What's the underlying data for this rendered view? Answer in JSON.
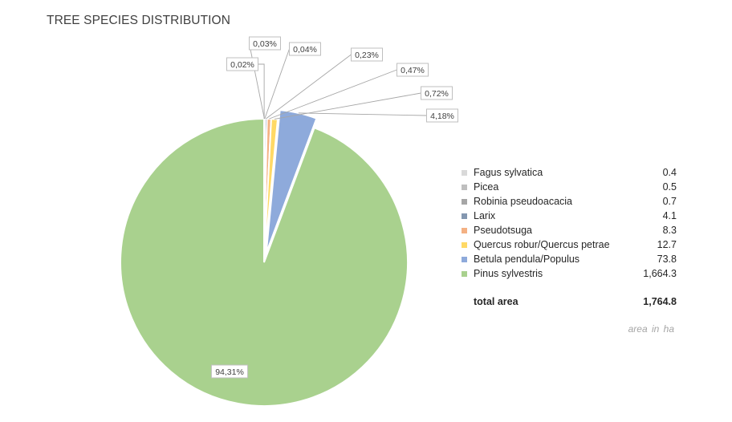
{
  "title": "TREE SPECIES DISTRIBUTION",
  "chart_data": {
    "type": "pie",
    "title": "TREE SPECIES DISTRIBUTION",
    "categories": [
      "Fagus sylvatica",
      "Picea",
      "Robinia pseudoacacia",
      "Larix",
      "Pseudotsuga",
      "Quercus robur/Quercus petrae",
      "Betula pendula/Populus",
      "Pinus sylvestris"
    ],
    "values": [
      0.4,
      0.5,
      0.7,
      4.1,
      8.3,
      12.7,
      73.8,
      1664.3
    ],
    "value_labels": [
      "0.4",
      "0.5",
      "0.7",
      "4.1",
      "8.3",
      "12.7",
      "73.8",
      "1,664.3"
    ],
    "percent_labels": [
      "0,02%",
      "0,03%",
      "0,04%",
      "0,23%",
      "0,47%",
      "0,72%",
      "4,18%",
      "94,31%"
    ],
    "colors": [
      "#d9d9d9",
      "#bfbfbf",
      "#a6a6a6",
      "#8497b0",
      "#f4b183",
      "#ffd966",
      "#8eaadb",
      "#a9d18e"
    ],
    "exploded": [
      false,
      false,
      false,
      false,
      false,
      false,
      true,
      false
    ],
    "legend_position": "right",
    "total_label": "total area",
    "total_value": "1,764.8",
    "unit_note": "area in  ha"
  }
}
